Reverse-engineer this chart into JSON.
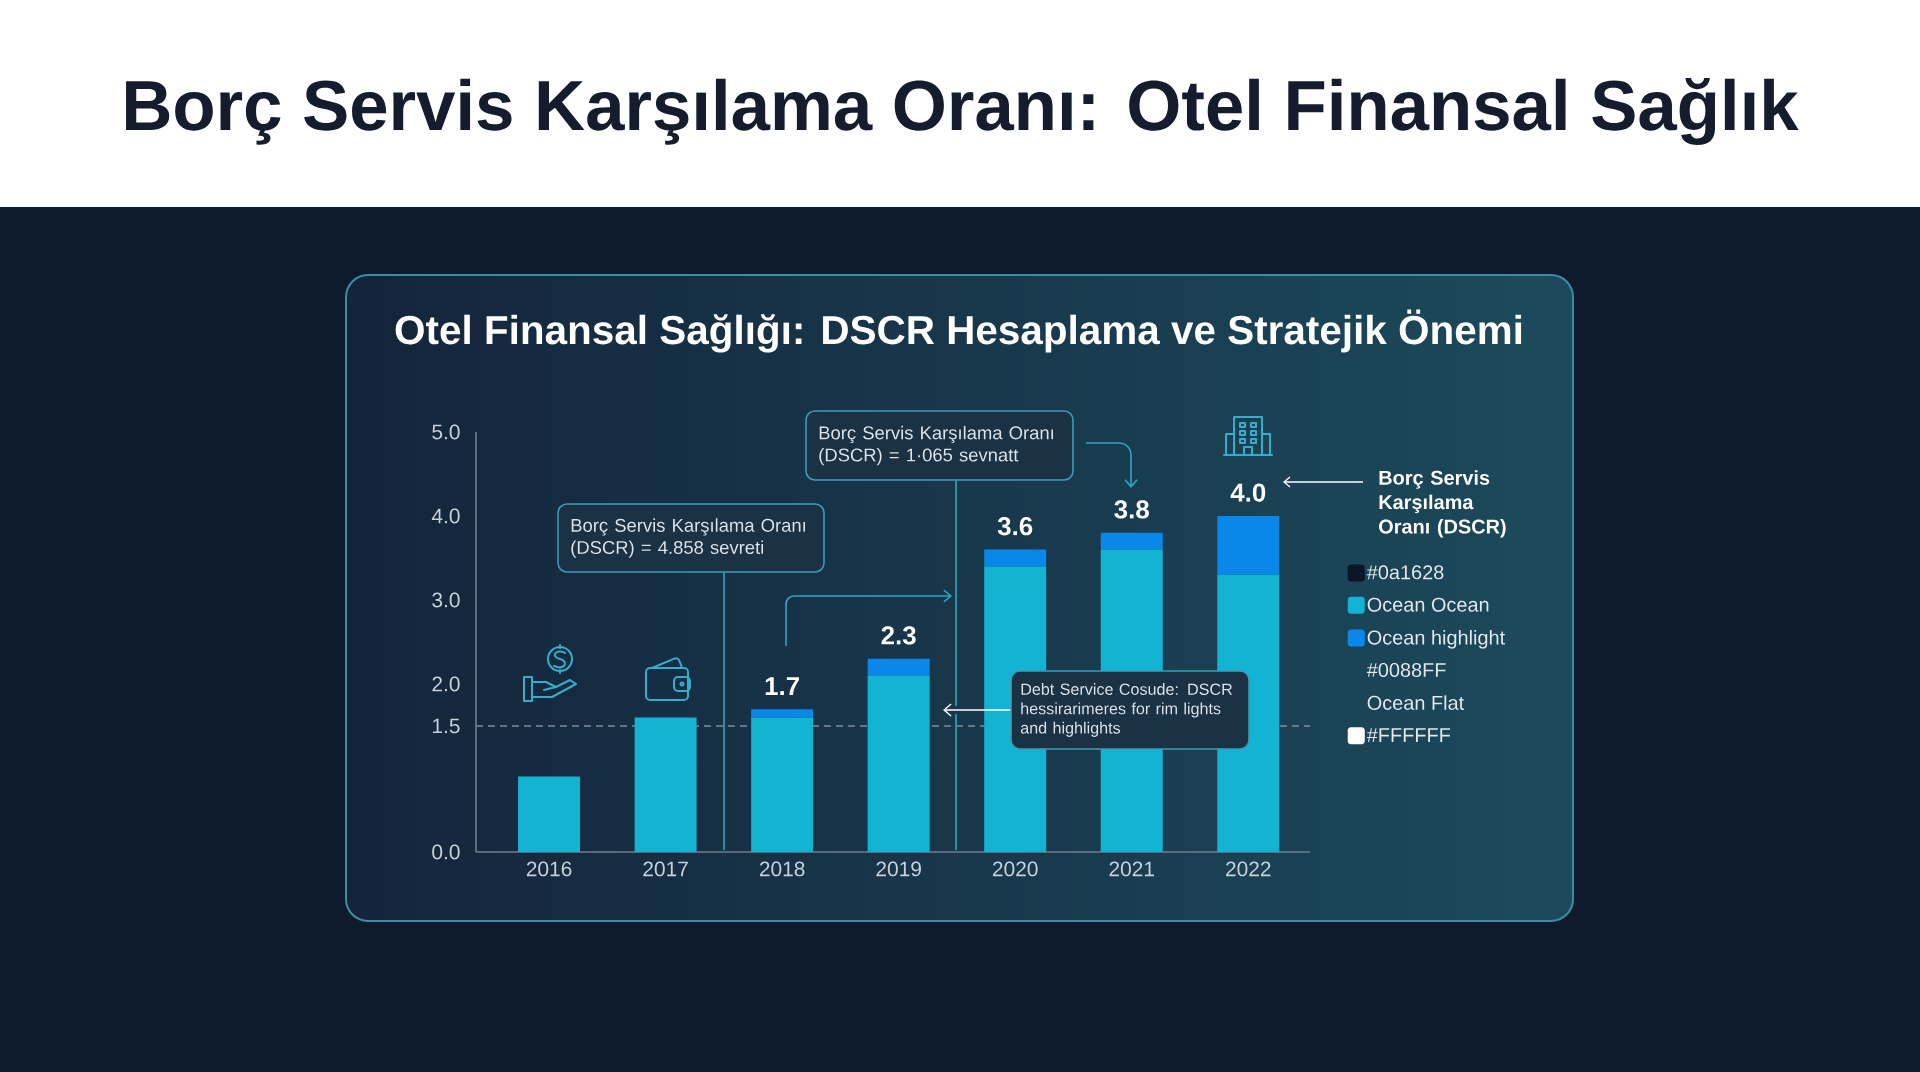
{
  "chart_data": {
    "type": "bar",
    "title": "Borç Servis Karşılama Oranı: Otel Finansal Sağlık",
    "subtitle": "Otel Finansal Sağlığı: DSCR Hesaplama ve Stratejik Önemi",
    "legend_title": "Borç Servis Karşılama Oranı (DSCR)",
    "categories": [
      "2016",
      "2017",
      "2018",
      "2019",
      "2020",
      "2021",
      "2022"
    ],
    "stacked": true,
    "series": [
      {
        "name": "#0a1628",
        "color": "#0a1628",
        "values": [
          null,
          null,
          null,
          null,
          null,
          null,
          null
        ]
      },
      {
        "name": "Ocean Ocean",
        "color": "#13b3d3",
        "values": [
          0.9,
          1.6,
          1.6,
          2.1,
          3.4,
          3.6,
          3.3
        ]
      },
      {
        "name": "Ocean highlight",
        "color": "#0a88ea",
        "values": [
          0,
          0,
          0.1,
          0.2,
          0.2,
          0.2,
          0.7
        ]
      },
      {
        "name": "#0088FF",
        "values": [
          null,
          null,
          null,
          null,
          null,
          null,
          null
        ]
      },
      {
        "name": "Ocean Flat",
        "values": [
          null,
          null,
          null,
          null,
          null,
          null,
          null
        ]
      },
      {
        "name": "#FFFFFF",
        "color": "#ffffff",
        "values": [
          null,
          null,
          null,
          null,
          null,
          null,
          null
        ]
      }
    ],
    "totals": [
      null,
      null,
      "1.7",
      "2.3",
      "3.6",
      "3.8",
      "4.0"
    ],
    "ylim": [
      0,
      5
    ],
    "yticks": [
      {
        "value": 0,
        "label": "0.0"
      },
      {
        "value": 1.5,
        "label": "1.5"
      },
      {
        "value": 2,
        "label": "2.0"
      },
      {
        "value": 3,
        "label": "3.0"
      },
      {
        "value": 4,
        "label": "4.0"
      },
      {
        "value": 5,
        "label": "5.0"
      }
    ],
    "ref_lines": [
      {
        "axis": "y",
        "value": 1.5,
        "line_style": "dashed",
        "color": "#7f8c99"
      }
    ],
    "legend": "right",
    "annotations": [
      "Borç Servis Karşılama Oranı (DSCR) = 4.858 sevreti",
      "Borç Servis Karşılama Oranı (DSCR) = 1·065 sevnatt",
      "Debt Service Cosude: DSCR hessirarimeres for rim lights and highlights"
    ]
  }
}
